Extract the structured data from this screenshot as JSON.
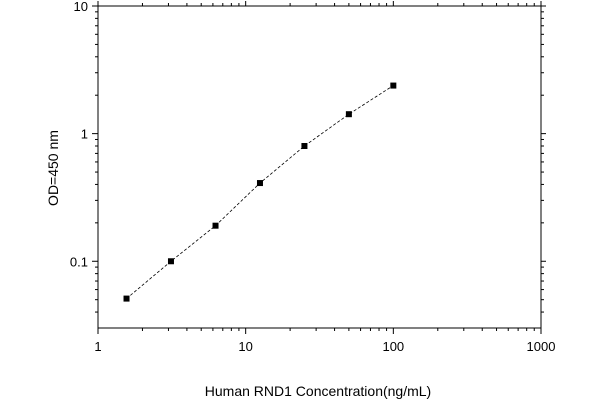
{
  "chart_data": {
    "type": "scatter",
    "title": "",
    "xlabel": "Human RND1 Concentration(ng/mL)",
    "ylabel": "OD=450 nm",
    "x_scale": "log",
    "y_scale": "log",
    "xlim": [
      1,
      1000
    ],
    "ylim": [
      0.03,
      10
    ],
    "x_ticks": [
      {
        "value": 1,
        "label": "1"
      },
      {
        "value": 10,
        "label": "10"
      },
      {
        "value": 100,
        "label": "100"
      },
      {
        "value": 1000,
        "label": "1000"
      }
    ],
    "y_ticks": [
      {
        "value": 0.1,
        "label": "0.1"
      },
      {
        "value": 1,
        "label": "1"
      },
      {
        "value": 10,
        "label": "10"
      }
    ],
    "grid": false,
    "legend": "none",
    "series": [
      {
        "x": [
          1.56,
          3.12,
          6.25,
          12.5,
          25,
          50,
          100
        ],
        "y": [
          0.051,
          0.1,
          0.19,
          0.41,
          0.8,
          1.42,
          2.38
        ],
        "marker": "square",
        "line": "dashed",
        "color": "#000000"
      }
    ]
  }
}
